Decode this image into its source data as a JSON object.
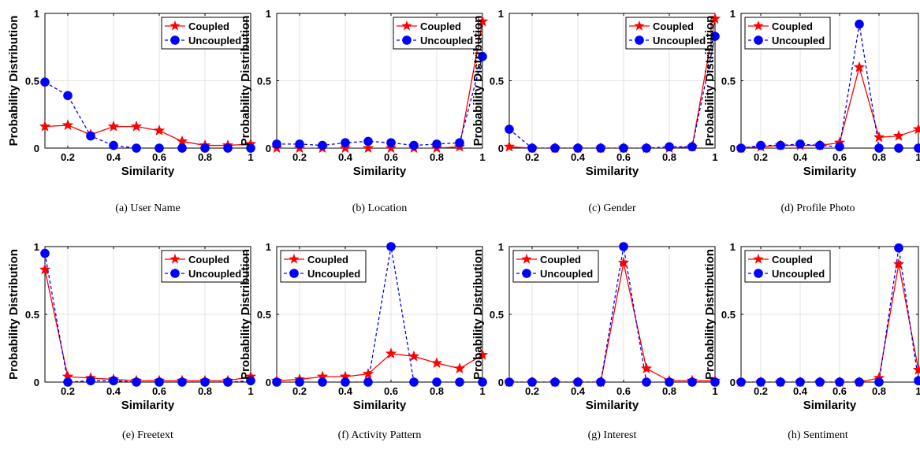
{
  "colors": {
    "coupled": "#ff0000",
    "uncoupled": "#0000ff",
    "grid": "#e3e3e3",
    "axis": "#000000"
  },
  "chart_data": [
    {
      "type": "line",
      "caption": "(a)  User Name",
      "xlabel": "Similarity",
      "ylabel": "Probability Distribution",
      "xlim": [
        0.1,
        1.0
      ],
      "ylim": [
        0,
        1
      ],
      "xticks": [
        "0.2",
        "0.4",
        "0.6",
        "0.8",
        "1"
      ],
      "yticks": [
        "0",
        "0.5",
        "1"
      ],
      "grid": true,
      "legend_position": "top-right",
      "x": [
        0.1,
        0.2,
        0.3,
        0.4,
        0.5,
        0.6,
        0.7,
        0.8,
        0.9,
        1.0
      ],
      "series": [
        {
          "name": "Coupled",
          "marker": "star",
          "line": "solid",
          "values": [
            0.16,
            0.17,
            0.1,
            0.16,
            0.16,
            0.13,
            0.05,
            0.02,
            0.02,
            0.03
          ]
        },
        {
          "name": "Uncoupled",
          "marker": "circle",
          "line": "dashed",
          "values": [
            0.49,
            0.39,
            0.09,
            0.02,
            0.0,
            0.0,
            0.0,
            0.0,
            0.0,
            0.0
          ]
        }
      ]
    },
    {
      "type": "line",
      "caption": "(b)  Location",
      "xlabel": "Similarity",
      "ylabel": "Probability Distribution",
      "xlim": [
        0.1,
        1.0
      ],
      "ylim": [
        0,
        1
      ],
      "xticks": [
        "0.2",
        "0.4",
        "0.6",
        "0.8",
        "1"
      ],
      "yticks": [
        "0",
        "0.5",
        "1"
      ],
      "grid": true,
      "legend_position": "top-right",
      "x": [
        0.1,
        0.2,
        0.3,
        0.4,
        0.5,
        0.6,
        0.7,
        0.8,
        0.9,
        1.0
      ],
      "series": [
        {
          "name": "Coupled",
          "marker": "star",
          "line": "solid",
          "values": [
            0.0,
            0.0,
            0.0,
            0.0,
            0.0,
            0.0,
            0.0,
            0.0,
            0.01,
            0.94
          ]
        },
        {
          "name": "Uncoupled",
          "marker": "circle",
          "line": "dashed",
          "values": [
            0.03,
            0.03,
            0.02,
            0.04,
            0.05,
            0.04,
            0.02,
            0.03,
            0.04,
            0.68
          ]
        }
      ]
    },
    {
      "type": "line",
      "caption": "(c)  Gender",
      "xlabel": "Similarity",
      "ylabel": "Probability Distribution",
      "xlim": [
        0.1,
        1.0
      ],
      "ylim": [
        0,
        1
      ],
      "xticks": [
        "0.2",
        "0.4",
        "0.6",
        "0.8",
        "1"
      ],
      "yticks": [
        "0",
        "0.5",
        "1"
      ],
      "grid": true,
      "legend_position": "top-right",
      "x": [
        0.1,
        0.2,
        0.3,
        0.4,
        0.5,
        0.6,
        0.7,
        0.8,
        0.9,
        1.0
      ],
      "series": [
        {
          "name": "Coupled",
          "marker": "star",
          "line": "solid",
          "values": [
            0.01,
            0.0,
            0.0,
            0.0,
            0.0,
            0.0,
            0.0,
            0.0,
            0.01,
            0.96
          ]
        },
        {
          "name": "Uncoupled",
          "marker": "circle",
          "line": "dashed",
          "values": [
            0.14,
            0.0,
            0.0,
            0.0,
            0.0,
            0.0,
            0.0,
            0.01,
            0.01,
            0.83
          ]
        }
      ]
    },
    {
      "type": "line",
      "caption": "(d)  Profile Photo",
      "xlabel": "Similarity",
      "ylabel": "Probability Distribution",
      "xlim": [
        0.1,
        1.0
      ],
      "ylim": [
        0,
        1
      ],
      "xticks": [
        "0.2",
        "0.4",
        "0.6",
        "0.8",
        "1"
      ],
      "yticks": [
        "0",
        "0.5",
        "1"
      ],
      "grid": true,
      "legend_position": "top-left",
      "x": [
        0.1,
        0.2,
        0.3,
        0.4,
        0.5,
        0.6,
        0.7,
        0.8,
        0.9,
        1.0
      ],
      "series": [
        {
          "name": "Coupled",
          "marker": "star",
          "line": "solid",
          "values": [
            0.0,
            0.01,
            0.02,
            0.02,
            0.02,
            0.04,
            0.6,
            0.08,
            0.09,
            0.14
          ]
        },
        {
          "name": "Uncoupled",
          "marker": "circle",
          "line": "dashed",
          "values": [
            0.0,
            0.02,
            0.02,
            0.03,
            0.02,
            0.01,
            0.92,
            0.0,
            0.0,
            0.0
          ]
        }
      ]
    },
    {
      "type": "line",
      "caption": "(e)  Freetext",
      "xlabel": "Similarity",
      "ylabel": "Probability Distribution",
      "xlim": [
        0.1,
        1.0
      ],
      "ylim": [
        0,
        1
      ],
      "xticks": [
        "0.2",
        "0.4",
        "0.6",
        "0.8",
        "1"
      ],
      "yticks": [
        "0",
        "0.5",
        "1"
      ],
      "grid": true,
      "legend_position": "top-right",
      "x": [
        0.1,
        0.2,
        0.3,
        0.4,
        0.5,
        0.6,
        0.7,
        0.8,
        0.9,
        1.0
      ],
      "series": [
        {
          "name": "Coupled",
          "marker": "star",
          "line": "solid",
          "values": [
            0.83,
            0.04,
            0.03,
            0.02,
            0.01,
            0.01,
            0.01,
            0.01,
            0.01,
            0.04
          ]
        },
        {
          "name": "Uncoupled",
          "marker": "circle",
          "line": "dashed",
          "values": [
            0.95,
            0.0,
            0.01,
            0.01,
            0.0,
            0.0,
            0.0,
            0.0,
            0.0,
            0.01
          ]
        }
      ]
    },
    {
      "type": "line",
      "caption": "(f)  Activity Pattern",
      "xlabel": "Similarity",
      "ylabel": "Probability Distribution",
      "xlim": [
        0.1,
        1.0
      ],
      "ylim": [
        0,
        1
      ],
      "xticks": [
        "0.2",
        "0.4",
        "0.6",
        "0.8",
        "1"
      ],
      "yticks": [
        "0",
        "0.5",
        "1"
      ],
      "grid": true,
      "legend_position": "top-left",
      "x": [
        0.1,
        0.2,
        0.3,
        0.4,
        0.5,
        0.6,
        0.7,
        0.8,
        0.9,
        1.0
      ],
      "series": [
        {
          "name": "Coupled",
          "marker": "star",
          "line": "solid",
          "values": [
            0.01,
            0.02,
            0.04,
            0.04,
            0.06,
            0.21,
            0.19,
            0.14,
            0.1,
            0.2
          ]
        },
        {
          "name": "Uncoupled",
          "marker": "circle",
          "line": "dashed",
          "values": [
            0.0,
            0.0,
            0.0,
            0.0,
            0.0,
            1.0,
            0.0,
            0.0,
            0.0,
            0.0
          ]
        }
      ]
    },
    {
      "type": "line",
      "caption": "(g)  Interest",
      "xlabel": "Similarity",
      "ylabel": "Probability Distribution",
      "xlim": [
        0.1,
        1.0
      ],
      "ylim": [
        0,
        1
      ],
      "xticks": [
        "0.2",
        "0.4",
        "0.6",
        "0.8",
        "1"
      ],
      "yticks": [
        "0",
        "0.5",
        "1"
      ],
      "grid": true,
      "legend_position": "top-left",
      "x": [
        0.1,
        0.2,
        0.3,
        0.4,
        0.5,
        0.6,
        0.7,
        0.8,
        0.9,
        1.0
      ],
      "series": [
        {
          "name": "Coupled",
          "marker": "star",
          "line": "solid",
          "values": [
            0.0,
            0.0,
            0.0,
            0.0,
            0.0,
            0.88,
            0.1,
            0.01,
            0.01,
            0.01
          ]
        },
        {
          "name": "Uncoupled",
          "marker": "circle",
          "line": "dashed",
          "values": [
            0.0,
            0.0,
            0.0,
            0.0,
            0.0,
            1.0,
            0.0,
            0.0,
            0.0,
            0.0
          ]
        }
      ]
    },
    {
      "type": "line",
      "caption": "(h)  Sentiment",
      "xlabel": "Similarity",
      "ylabel": "Probability Distribution",
      "xlim": [
        0.1,
        1.0
      ],
      "ylim": [
        0,
        1
      ],
      "xticks": [
        "0.2",
        "0.4",
        "0.6",
        "0.8",
        "1"
      ],
      "yticks": [
        "0",
        "0.5",
        "1"
      ],
      "grid": true,
      "legend_position": "top-left",
      "x": [
        0.1,
        0.2,
        0.3,
        0.4,
        0.5,
        0.6,
        0.7,
        0.8,
        0.9,
        1.0
      ],
      "series": [
        {
          "name": "Coupled",
          "marker": "star",
          "line": "solid",
          "values": [
            0.0,
            0.0,
            0.0,
            0.0,
            0.0,
            0.0,
            0.0,
            0.03,
            0.87,
            0.09
          ]
        },
        {
          "name": "Uncoupled",
          "marker": "circle",
          "line": "dashed",
          "values": [
            0.0,
            0.0,
            0.0,
            0.0,
            0.0,
            0.0,
            0.0,
            0.0,
            0.99,
            0.01
          ]
        }
      ]
    }
  ]
}
